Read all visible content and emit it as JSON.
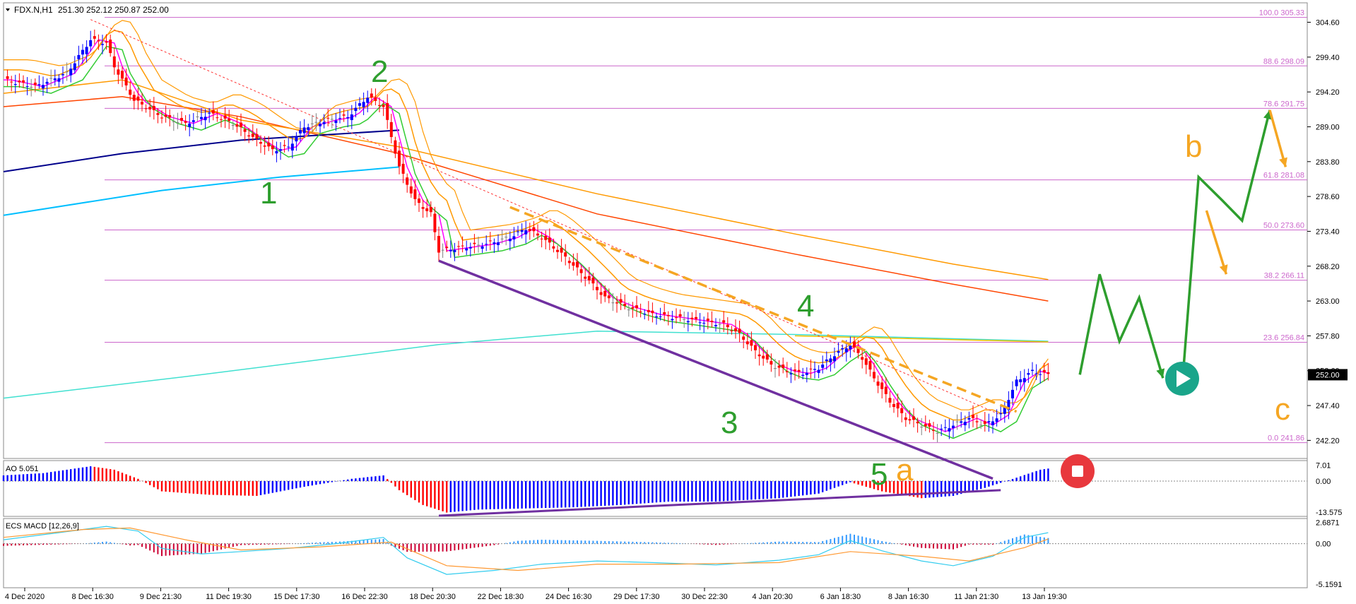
{
  "header": {
    "symbol_timeframe": "FDX.N,H1",
    "ohlc": "251.30 252.12 250.87 252.00"
  },
  "colors": {
    "bull_candle": "#0000ff",
    "bear_candle": "#ff0000",
    "neutral_candle": "#808080",
    "fib": "#cc66cc",
    "ema_slow": "#ff4500",
    "ema_orange": "#ff9900",
    "ema_blue": "#00008b",
    "ema_cyan": "#00bfff",
    "ema_aqua": "#40e0d0",
    "magenta": "#ff00ff",
    "green": "#33cc33",
    "purple": "#7030a0",
    "wave_green": "#2e9e2e",
    "wave_orange": "#f5a623",
    "play_btn": "#1aa58a",
    "stop_btn": "#e8383d"
  },
  "chart_data": {
    "type": "candlestick",
    "ylim": [
      239.5,
      307.5
    ],
    "price_ticks": [
      "304.60",
      "299.40",
      "294.20",
      "289.00",
      "283.80",
      "278.60",
      "273.40",
      "268.20",
      "263.00",
      "257.80",
      "252.60",
      "247.40",
      "242.20"
    ],
    "current_price": "252.00",
    "time_labels": [
      "4 Dec 2020",
      "8 Dec 16:30",
      "9 Dec 21:30",
      "11 Dec 19:30",
      "15 Dec 17:30",
      "16 Dec 22:30",
      "18 Dec 20:30",
      "22 Dec 18:30",
      "24 Dec 16:30",
      "29 Dec 17:30",
      "30 Dec 22:30",
      "4 Jan 20:30",
      "6 Jan 18:30",
      "8 Jan 16:30",
      "11 Jan 21:30",
      "13 Jan 19:30"
    ],
    "fib_levels": [
      {
        "label": "100.0 305.33",
        "price": 305.33
      },
      {
        "label": "88.6 298.09",
        "price": 298.09
      },
      {
        "label": "78.6 291.75",
        "price": 291.75
      },
      {
        "label": "61.8 281.08",
        "price": 281.08
      },
      {
        "label": "50.0 273.60",
        "price": 273.6
      },
      {
        "label": "38.2 266.11",
        "price": 266.11
      },
      {
        "label": "23.6 256.84",
        "price": 256.84
      },
      {
        "label": "0.0 241.86",
        "price": 241.86
      }
    ],
    "close_path": [
      [
        0,
        296.0
      ],
      [
        8,
        295.0
      ],
      [
        16,
        297.0
      ],
      [
        22,
        302.0
      ],
      [
        26,
        301.5
      ],
      [
        28,
        298.0
      ],
      [
        33,
        293.0
      ],
      [
        40,
        290.5
      ],
      [
        46,
        289.5
      ],
      [
        52,
        291.0
      ],
      [
        58,
        289.5
      ],
      [
        64,
        287.0
      ],
      [
        68,
        285.5
      ],
      [
        72,
        286.0
      ],
      [
        76,
        289.0
      ],
      [
        82,
        290.0
      ],
      [
        87,
        290.5
      ],
      [
        92,
        293.5
      ],
      [
        96,
        292.0
      ],
      [
        100,
        283.0
      ],
      [
        104,
        278.0
      ],
      [
        108,
        276.0
      ],
      [
        110,
        270.5
      ],
      [
        116,
        271.0
      ],
      [
        122,
        271.5
      ],
      [
        128,
        272.5
      ],
      [
        132,
        273.8
      ],
      [
        136,
        272.5
      ],
      [
        142,
        269.5
      ],
      [
        148,
        266.0
      ],
      [
        152,
        263.5
      ],
      [
        158,
        262.0
      ],
      [
        164,
        261.0
      ],
      [
        170,
        260.5
      ],
      [
        176,
        260.0
      ],
      [
        182,
        259.5
      ],
      [
        186,
        258.0
      ],
      [
        190,
        255.5
      ],
      [
        194,
        253.5
      ],
      [
        198,
        252.5
      ],
      [
        202,
        252.2
      ],
      [
        206,
        253.0
      ],
      [
        210,
        255.0
      ],
      [
        214,
        256.5
      ],
      [
        217,
        254.5
      ],
      [
        220,
        251.5
      ],
      [
        224,
        248.0
      ],
      [
        228,
        245.5
      ],
      [
        232,
        244.5
      ],
      [
        236,
        243.5
      ],
      [
        240,
        244.5
      ],
      [
        244,
        245.5
      ],
      [
        248,
        244.5
      ],
      [
        252,
        246.0
      ],
      [
        256,
        251.0
      ],
      [
        260,
        252.5
      ],
      [
        264,
        252.0
      ]
    ],
    "ema_slow": [
      [
        0,
        292.0
      ],
      [
        30,
        293.5
      ],
      [
        60,
        290.5
      ],
      [
        100,
        285.0
      ],
      [
        150,
        276.0
      ],
      [
        200,
        270.0
      ],
      [
        240,
        265.5
      ],
      [
        264,
        263.0
      ]
    ],
    "ema_orange": [
      [
        0,
        294.0
      ],
      [
        30,
        296.0
      ],
      [
        60,
        290.0
      ],
      [
        100,
        286.0
      ],
      [
        150,
        279.0
      ],
      [
        200,
        273.0
      ],
      [
        240,
        268.5
      ],
      [
        264,
        266.2
      ]
    ],
    "ema_blue": [
      [
        0,
        282.3
      ],
      [
        30,
        285.0
      ],
      [
        60,
        287.0
      ],
      [
        100,
        288.5
      ]
    ],
    "ema_cyan": [
      [
        0,
        275.8
      ],
      [
        40,
        279.5
      ],
      [
        70,
        281.5
      ],
      [
        100,
        283.0
      ]
    ],
    "ema_aqua": [
      [
        0,
        248.5
      ],
      [
        50,
        252.0
      ],
      [
        110,
        256.5
      ],
      [
        150,
        258.5
      ],
      [
        200,
        258.0
      ],
      [
        264,
        257.0
      ]
    ],
    "ema_yellow": [
      [
        200,
        257.8
      ],
      [
        264,
        256.9
      ]
    ],
    "bear_trendline": {
      "from": [
        100,
        283.5
      ],
      "to": [
        252,
        246.0
      ]
    },
    "annotations": {
      "wave_labels": [
        "1",
        "2",
        "3",
        "4",
        "5"
      ],
      "abc_labels": [
        "a",
        "b",
        "c"
      ],
      "top_line": {
        "from": [
          110,
          269.0
        ],
        "to": [
          250,
          236.5
        ]
      },
      "orange_dash": {
        "from": [
          128,
          277.0
        ],
        "to": [
          256,
          246.5
        ]
      },
      "projection_green": [
        [
          [
            272,
            252.0
          ],
          [
            277,
            267.0
          ],
          [
            282,
            257.0
          ],
          [
            287,
            263.5
          ],
          [
            293,
            251.5
          ]
        ],
        [
          [
            298,
            251.5
          ],
          [
            302,
            281.5
          ],
          [
            308,
            278.0
          ],
          [
            313,
            275.0
          ],
          [
            320,
            291.5
          ]
        ]
      ],
      "projection_orange": [
        [
          [
            304,
            276.5
          ],
          [
            309,
            267.0
          ]
        ],
        [
          [
            320,
            291.5
          ],
          [
            324,
            283.0
          ]
        ]
      ]
    },
    "ao": {
      "label": "AO 5.051",
      "ticks": [
        "7.01",
        "0.00",
        "-13.575"
      ],
      "ylim": [
        -15.5,
        9.0
      ],
      "path": [
        [
          0,
          2.5
        ],
        [
          10,
          3.5
        ],
        [
          22,
          6.5
        ],
        [
          28,
          5.0
        ],
        [
          34,
          1.0
        ],
        [
          40,
          -4.5
        ],
        [
          52,
          -6.0
        ],
        [
          64,
          -6.5
        ],
        [
          76,
          -2.5
        ],
        [
          88,
          1.0
        ],
        [
          96,
          2.5
        ],
        [
          100,
          -4.0
        ],
        [
          106,
          -10.5
        ],
        [
          112,
          -13.8
        ],
        [
          120,
          -12.5
        ],
        [
          132,
          -12.0
        ],
        [
          144,
          -11.5
        ],
        [
          156,
          -10.5
        ],
        [
          168,
          -9.0
        ],
        [
          180,
          -9.0
        ],
        [
          196,
          -7.5
        ],
        [
          206,
          -5.5
        ],
        [
          214,
          -0.5
        ],
        [
          222,
          -4.5
        ],
        [
          232,
          -7.5
        ],
        [
          240,
          -6.5
        ],
        [
          248,
          -3.0
        ],
        [
          256,
          1.5
        ],
        [
          262,
          5.0
        ],
        [
          264,
          5.5
        ]
      ]
    },
    "macd": {
      "label": "ECS MACD [12,26,9]",
      "ticks": [
        "2.6871",
        "0.00",
        "-5.1591"
      ],
      "ylim": [
        -5.6,
        3.2
      ],
      "path": [
        [
          0,
          0.5
        ],
        [
          14,
          1.4
        ],
        [
          26,
          2.2
        ],
        [
          34,
          1.6
        ],
        [
          40,
          -0.6
        ],
        [
          50,
          -1.3
        ],
        [
          60,
          -1.0
        ],
        [
          72,
          -0.6
        ],
        [
          84,
          0.0
        ],
        [
          96,
          0.8
        ],
        [
          102,
          -1.8
        ],
        [
          112,
          -3.9
        ],
        [
          124,
          -3.4
        ],
        [
          136,
          -2.6
        ],
        [
          150,
          -2.2
        ],
        [
          164,
          -2.4
        ],
        [
          180,
          -2.7
        ],
        [
          196,
          -2.1
        ],
        [
          206,
          -1.4
        ],
        [
          214,
          0.4
        ],
        [
          222,
          -0.9
        ],
        [
          232,
          -2.2
        ],
        [
          240,
          -2.8
        ],
        [
          250,
          -1.6
        ],
        [
          258,
          0.8
        ],
        [
          264,
          1.4
        ]
      ],
      "signal": [
        [
          0,
          0.8
        ],
        [
          20,
          1.8
        ],
        [
          32,
          2.0
        ],
        [
          46,
          0.5
        ],
        [
          60,
          -0.8
        ],
        [
          80,
          -0.4
        ],
        [
          98,
          0.2
        ],
        [
          112,
          -2.8
        ],
        [
          130,
          -3.4
        ],
        [
          150,
          -2.6
        ],
        [
          170,
          -2.6
        ],
        [
          196,
          -2.4
        ],
        [
          214,
          -1.0
        ],
        [
          232,
          -1.6
        ],
        [
          244,
          -2.2
        ],
        [
          258,
          -0.5
        ],
        [
          264,
          0.6
        ]
      ]
    }
  }
}
